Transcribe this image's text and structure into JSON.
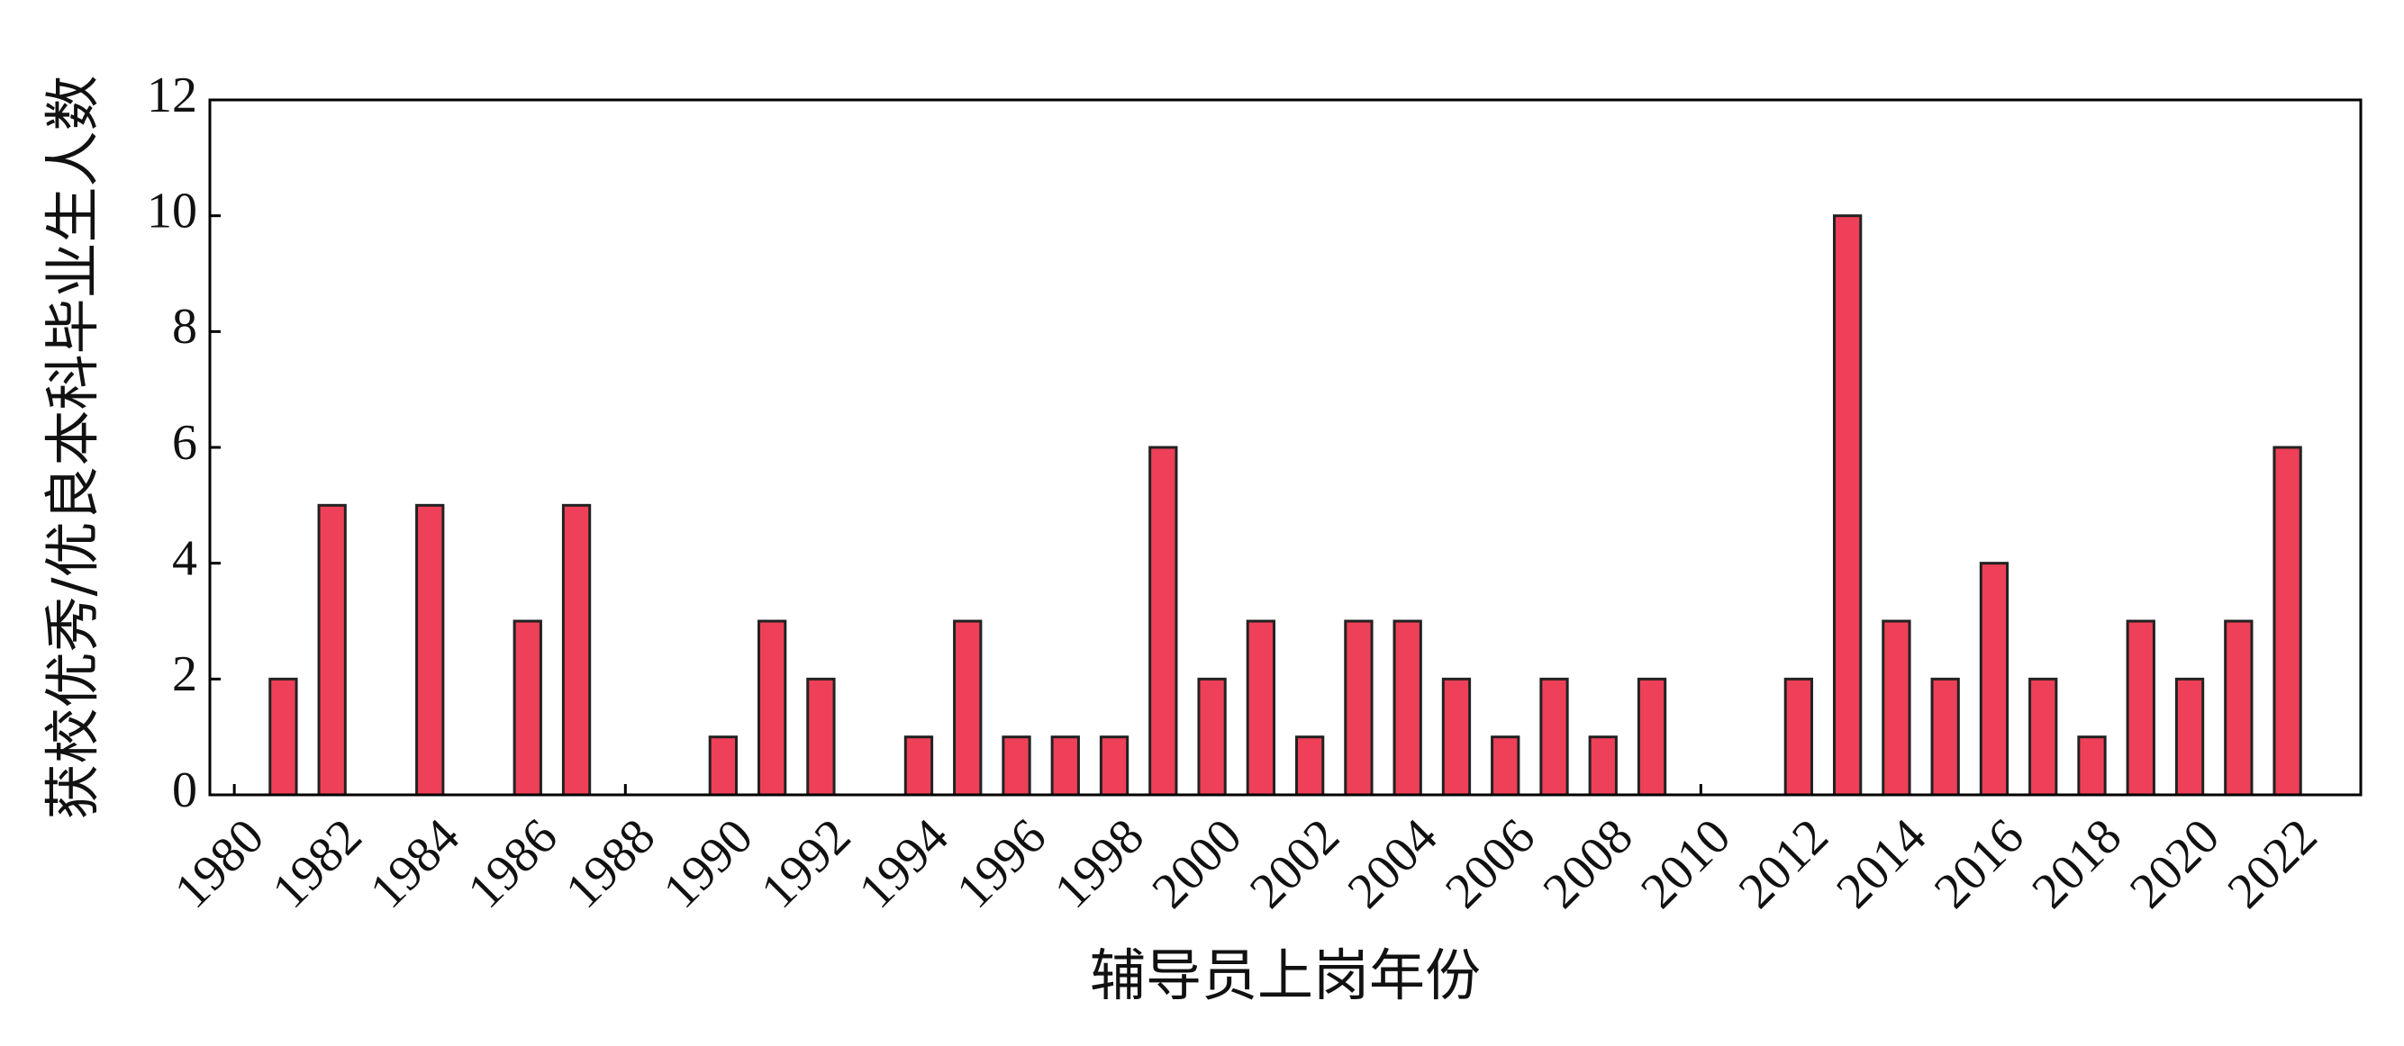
{
  "chart_data": {
    "type": "bar",
    "x_label": "辅导员上岗年份",
    "y_label": "获校优秀/优良本科毕业生人数",
    "x": [
      1981,
      1982,
      1984,
      1986,
      1987,
      1990,
      1991,
      1992,
      1994,
      1995,
      1996,
      1997,
      1998,
      1999,
      2000,
      2001,
      2002,
      2003,
      2004,
      2005,
      2006,
      2007,
      2008,
      2009,
      2012,
      2013,
      2014,
      2015,
      2016,
      2017,
      2018,
      2019,
      2020,
      2021,
      2022
    ],
    "values": [
      2,
      5,
      5,
      3,
      5,
      1,
      3,
      2,
      1,
      3,
      1,
      1,
      1,
      6,
      2,
      3,
      1,
      3,
      3,
      2,
      1,
      2,
      1,
      2,
      2,
      10,
      3,
      2,
      4,
      2,
      1,
      3,
      2,
      3,
      6
    ],
    "color": "#ee4058",
    "xlim": [
      1979.5,
      2023.5
    ],
    "xticks": [
      1980,
      1982,
      1984,
      1986,
      1988,
      1990,
      1992,
      1994,
      1996,
      1998,
      2000,
      2002,
      2004,
      2006,
      2008,
      2010,
      2012,
      2014,
      2016,
      2018,
      2020,
      2022
    ],
    "ylim": [
      0,
      12
    ],
    "yticks": [
      0,
      2,
      4,
      6,
      8,
      10,
      12
    ]
  }
}
